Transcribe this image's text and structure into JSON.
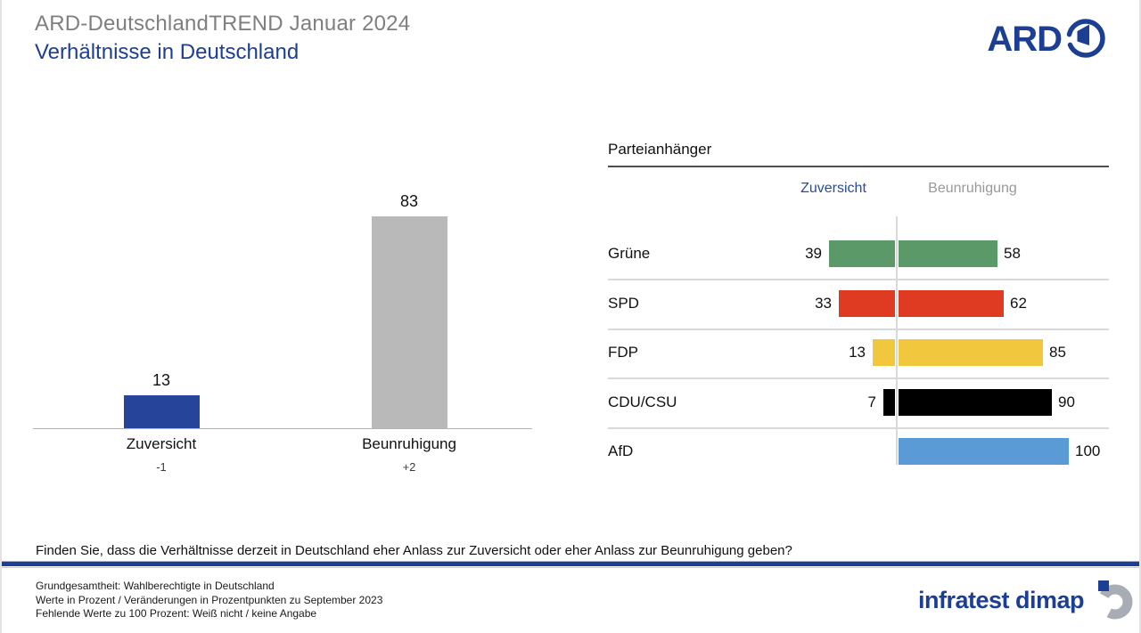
{
  "page": {
    "supertitle": "ARD-DeutschlandTREND Januar 2024",
    "title": "Verhältnisse in Deutschland",
    "question": "Finden Sie, dass die Verhältnisse derzeit in Deutschland eher Anlass zur Zuversicht oder eher Anlass zur Beunruhigung geben?",
    "footnotes": [
      "Grundgesamtheit: Wahlberechtigte in Deutschland",
      "Werte in Prozent / Veränderungen in Prozentpunkten zu September 2023",
      "Fehlende Werte zu 100 Prozent: Weiß nicht / keine Angabe"
    ],
    "brand_top": "ARD",
    "brand_bottom": "infratest dimap"
  },
  "colors": {
    "title_blue": "#1c3f94",
    "supertitle_gray": "#7f7f7f",
    "header_blue": "#2a4b9b",
    "header_gray": "#999999",
    "separator": "#d9d9d9"
  },
  "chart_data": [
    {
      "type": "bar",
      "title": "",
      "categories": [
        "Zuversicht",
        "Beunruhigung"
      ],
      "values": [
        13,
        83
      ],
      "changes": [
        "-1",
        "+2"
      ],
      "bar_colors": [
        "#26449a",
        "#b9b9b9"
      ],
      "ylim": [
        0,
        100
      ],
      "grid": false,
      "note": "value labels above bars, change vs September 2023 below category labels"
    },
    {
      "type": "bar",
      "orientation": "horizontal-diverging",
      "title": "Parteianhänger",
      "column_headers": [
        "Zuversicht",
        "Beunruhigung"
      ],
      "categories": [
        "Grüne",
        "SPD",
        "FDP",
        "CDU/CSU",
        "AfD"
      ],
      "series": [
        {
          "name": "Zuversicht",
          "values": [
            39,
            33,
            13,
            7,
            null
          ]
        },
        {
          "name": "Beunruhigung",
          "values": [
            58,
            62,
            85,
            90,
            100
          ]
        }
      ],
      "bar_colors": [
        "#5b9a68",
        "#df3b22",
        "#f1c73e",
        "#000000",
        "#5b9bd5"
      ],
      "xlim": [
        0,
        100
      ],
      "legend_position": "top"
    }
  ]
}
